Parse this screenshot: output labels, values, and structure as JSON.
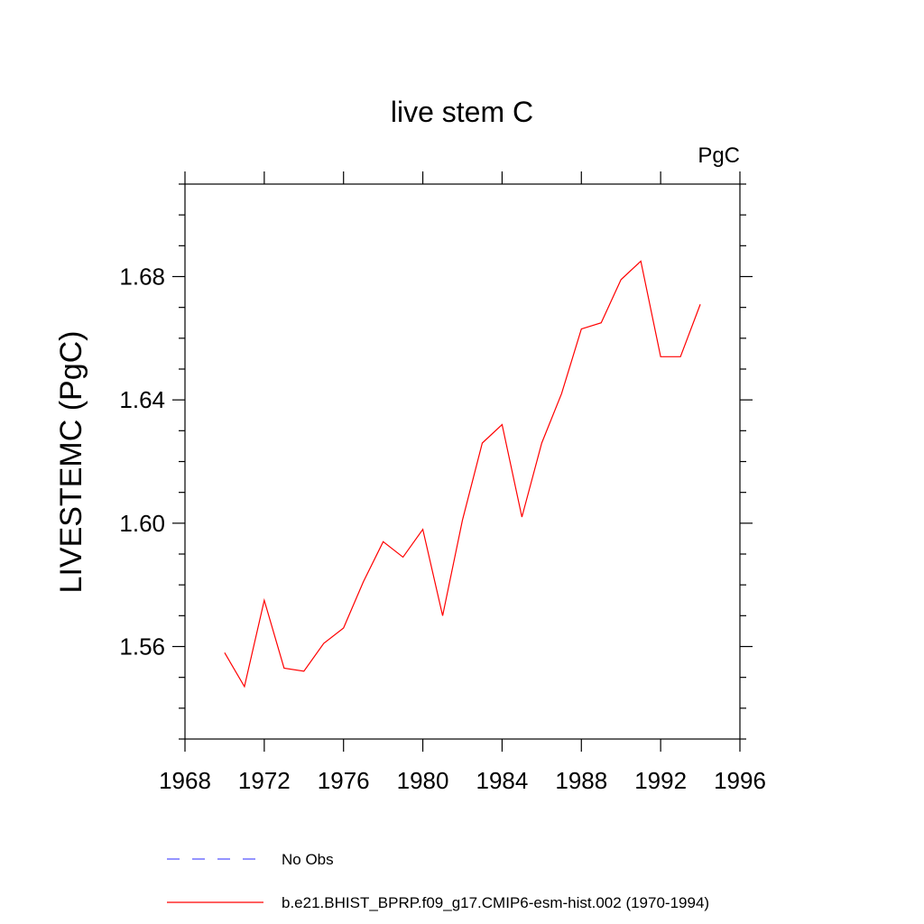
{
  "chart_data": {
    "type": "line",
    "title": "live stem C",
    "units_label": "PgC",
    "xlabel": "",
    "ylabel": "LIVESTEMC  (PgC)",
    "xlim": [
      1968,
      1996
    ],
    "ylim": [
      1.53,
      1.71
    ],
    "x_ticks": [
      "1968",
      "1972",
      "1976",
      "1980",
      "1984",
      "1988",
      "1992",
      "1996"
    ],
    "y_ticks": [
      "1.56",
      "1.60",
      "1.64",
      "1.68"
    ],
    "grid": false,
    "legend_position": "bottom",
    "series": [
      {
        "name": "b.e21.BHIST_BPRP.f09_g17.CMIP6-esm-hist.002 (1970-1994)",
        "color": "#ff0000",
        "style": "solid",
        "x": [
          1970,
          1971,
          1972,
          1973,
          1974,
          1975,
          1976,
          1977,
          1978,
          1979,
          1980,
          1981,
          1982,
          1983,
          1984,
          1985,
          1986,
          1987,
          1988,
          1989,
          1990,
          1991,
          1992,
          1993,
          1994
        ],
        "values": [
          1.558,
          1.547,
          1.575,
          1.553,
          1.552,
          1.561,
          1.566,
          1.581,
          1.594,
          1.589,
          1.598,
          1.57,
          1.601,
          1.626,
          1.632,
          1.602,
          1.626,
          1.642,
          1.663,
          1.665,
          1.679,
          1.685,
          1.654,
          1.654,
          1.671
        ]
      }
    ],
    "legend": [
      {
        "label": "No Obs",
        "color": "#5555ff",
        "style": "dashed"
      },
      {
        "label": "b.e21.BHIST_BPRP.f09_g17.CMIP6-esm-hist.002 (1970-1994)",
        "color": "#ff0000",
        "style": "solid"
      }
    ]
  }
}
